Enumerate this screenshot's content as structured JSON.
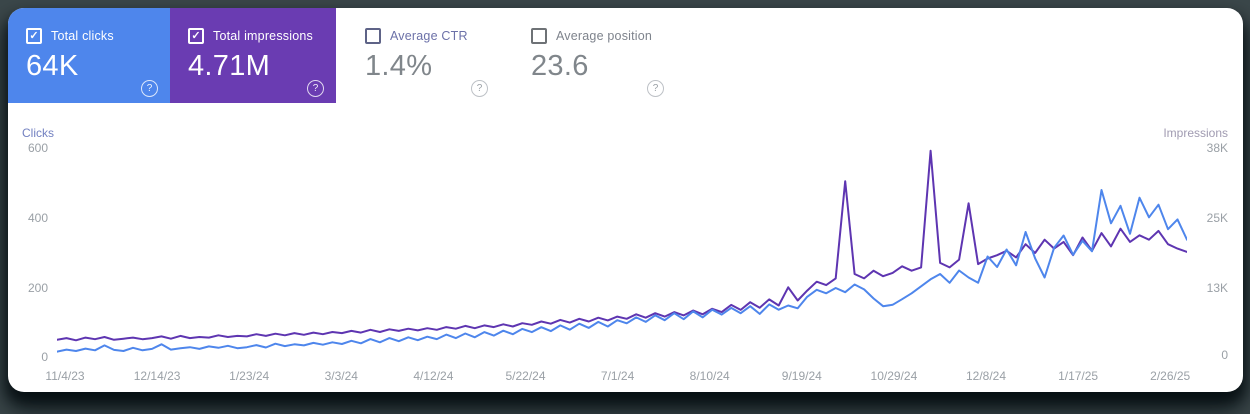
{
  "icons": {
    "help": "?",
    "check": "✓"
  },
  "cards": [
    {
      "label": "Total clicks",
      "value": "64K",
      "checked": true,
      "bg": "#4e86ec"
    },
    {
      "label": "Total impressions",
      "value": "4.71M",
      "checked": true,
      "bg": "#6a3cb2"
    },
    {
      "label": "Average CTR",
      "value": "1.4%",
      "checked": false,
      "bg": "#ffffff"
    },
    {
      "label": "Average position",
      "value": "23.6",
      "checked": false,
      "bg": "#ffffff"
    }
  ],
  "chart_data": {
    "type": "line",
    "grid": false,
    "legend": "none",
    "left_axis": {
      "title": "Clicks",
      "ticks": [
        "600",
        "400",
        "200",
        "0"
      ],
      "range": [
        0,
        600
      ]
    },
    "right_axis": {
      "title": "Impressions",
      "ticks": [
        "38K",
        "25K",
        "13K",
        "0"
      ],
      "range": [
        0,
        38000
      ]
    },
    "x_ticks": [
      "11/4/23",
      "12/14/23",
      "1/23/24",
      "3/3/24",
      "4/12/24",
      "5/22/24",
      "7/1/24",
      "8/10/24",
      "9/19/24",
      "10/29/24",
      "12/8/24",
      "1/17/25",
      "2/26/25"
    ],
    "series": [
      {
        "name": "Total impressions",
        "axis": "right",
        "unit": "K",
        "color": "#5e35b1",
        "values": [
          3.3,
          3.6,
          3.2,
          3.7,
          3.4,
          3.8,
          3.3,
          3.5,
          3.7,
          3.4,
          3.6,
          3.9,
          3.5,
          4.0,
          3.6,
          3.8,
          3.7,
          4.1,
          3.8,
          4.0,
          3.9,
          4.3,
          4.0,
          4.4,
          4.1,
          4.5,
          4.2,
          4.6,
          4.3,
          4.7,
          4.5,
          4.9,
          4.6,
          5.1,
          4.7,
          5.2,
          4.9,
          5.3,
          5.0,
          5.4,
          5.1,
          5.6,
          5.3,
          5.8,
          5.4,
          5.9,
          5.6,
          6.1,
          5.7,
          6.3,
          6.0,
          6.6,
          6.2,
          6.9,
          6.4,
          7.1,
          6.6,
          7.3,
          6.8,
          7.5,
          7.1,
          7.9,
          7.3,
          8.1,
          7.5,
          8.3,
          7.7,
          8.6,
          7.9,
          8.9,
          8.3,
          9.6,
          8.7,
          10.1,
          9.1,
          10.6,
          9.5,
          12.8,
          10.4,
          12.2,
          13.8,
          13.2,
          14.4,
          32.0,
          15.2,
          14.4,
          15.8,
          14.8,
          15.4,
          16.6,
          15.8,
          16.4,
          37.5,
          17.2,
          16.4,
          17.8,
          28.0,
          17.0,
          18.0,
          18.6,
          19.4,
          18.2,
          20.6,
          19.0,
          21.4,
          19.8,
          21.0,
          18.6,
          21.8,
          19.4,
          22.6,
          20.2,
          23.4,
          21.0,
          22.2,
          21.4,
          23.0,
          20.6,
          19.8,
          19.2
        ]
      },
      {
        "name": "Total clicks",
        "axis": "left",
        "unit": "",
        "color": "#4e86ec",
        "values": [
          18,
          24,
          20,
          27,
          22,
          36,
          23,
          20,
          29,
          22,
          26,
          39,
          24,
          28,
          31,
          26,
          33,
          29,
          35,
          28,
          31,
          37,
          30,
          41,
          34,
          39,
          36,
          43,
          38,
          45,
          40,
          49,
          42,
          54,
          45,
          57,
          48,
          59,
          51,
          61,
          54,
          67,
          57,
          70,
          59,
          74,
          64,
          78,
          68,
          83,
          74,
          88,
          77,
          93,
          81,
          98,
          86,
          103,
          90,
          108,
          99,
          116,
          103,
          122,
          108,
          128,
          111,
          133,
          116,
          138,
          124,
          143,
          128,
          148,
          126,
          153,
          138,
          150,
          142,
          175,
          195,
          185,
          200,
          188,
          210,
          196,
          170,
          148,
          152,
          168,
          185,
          205,
          225,
          240,
          215,
          250,
          230,
          215,
          290,
          260,
          310,
          265,
          360,
          285,
          230,
          315,
          350,
          295,
          335,
          305,
          480,
          385,
          435,
          355,
          458,
          402,
          438,
          368,
          396,
          338
        ]
      }
    ]
  }
}
